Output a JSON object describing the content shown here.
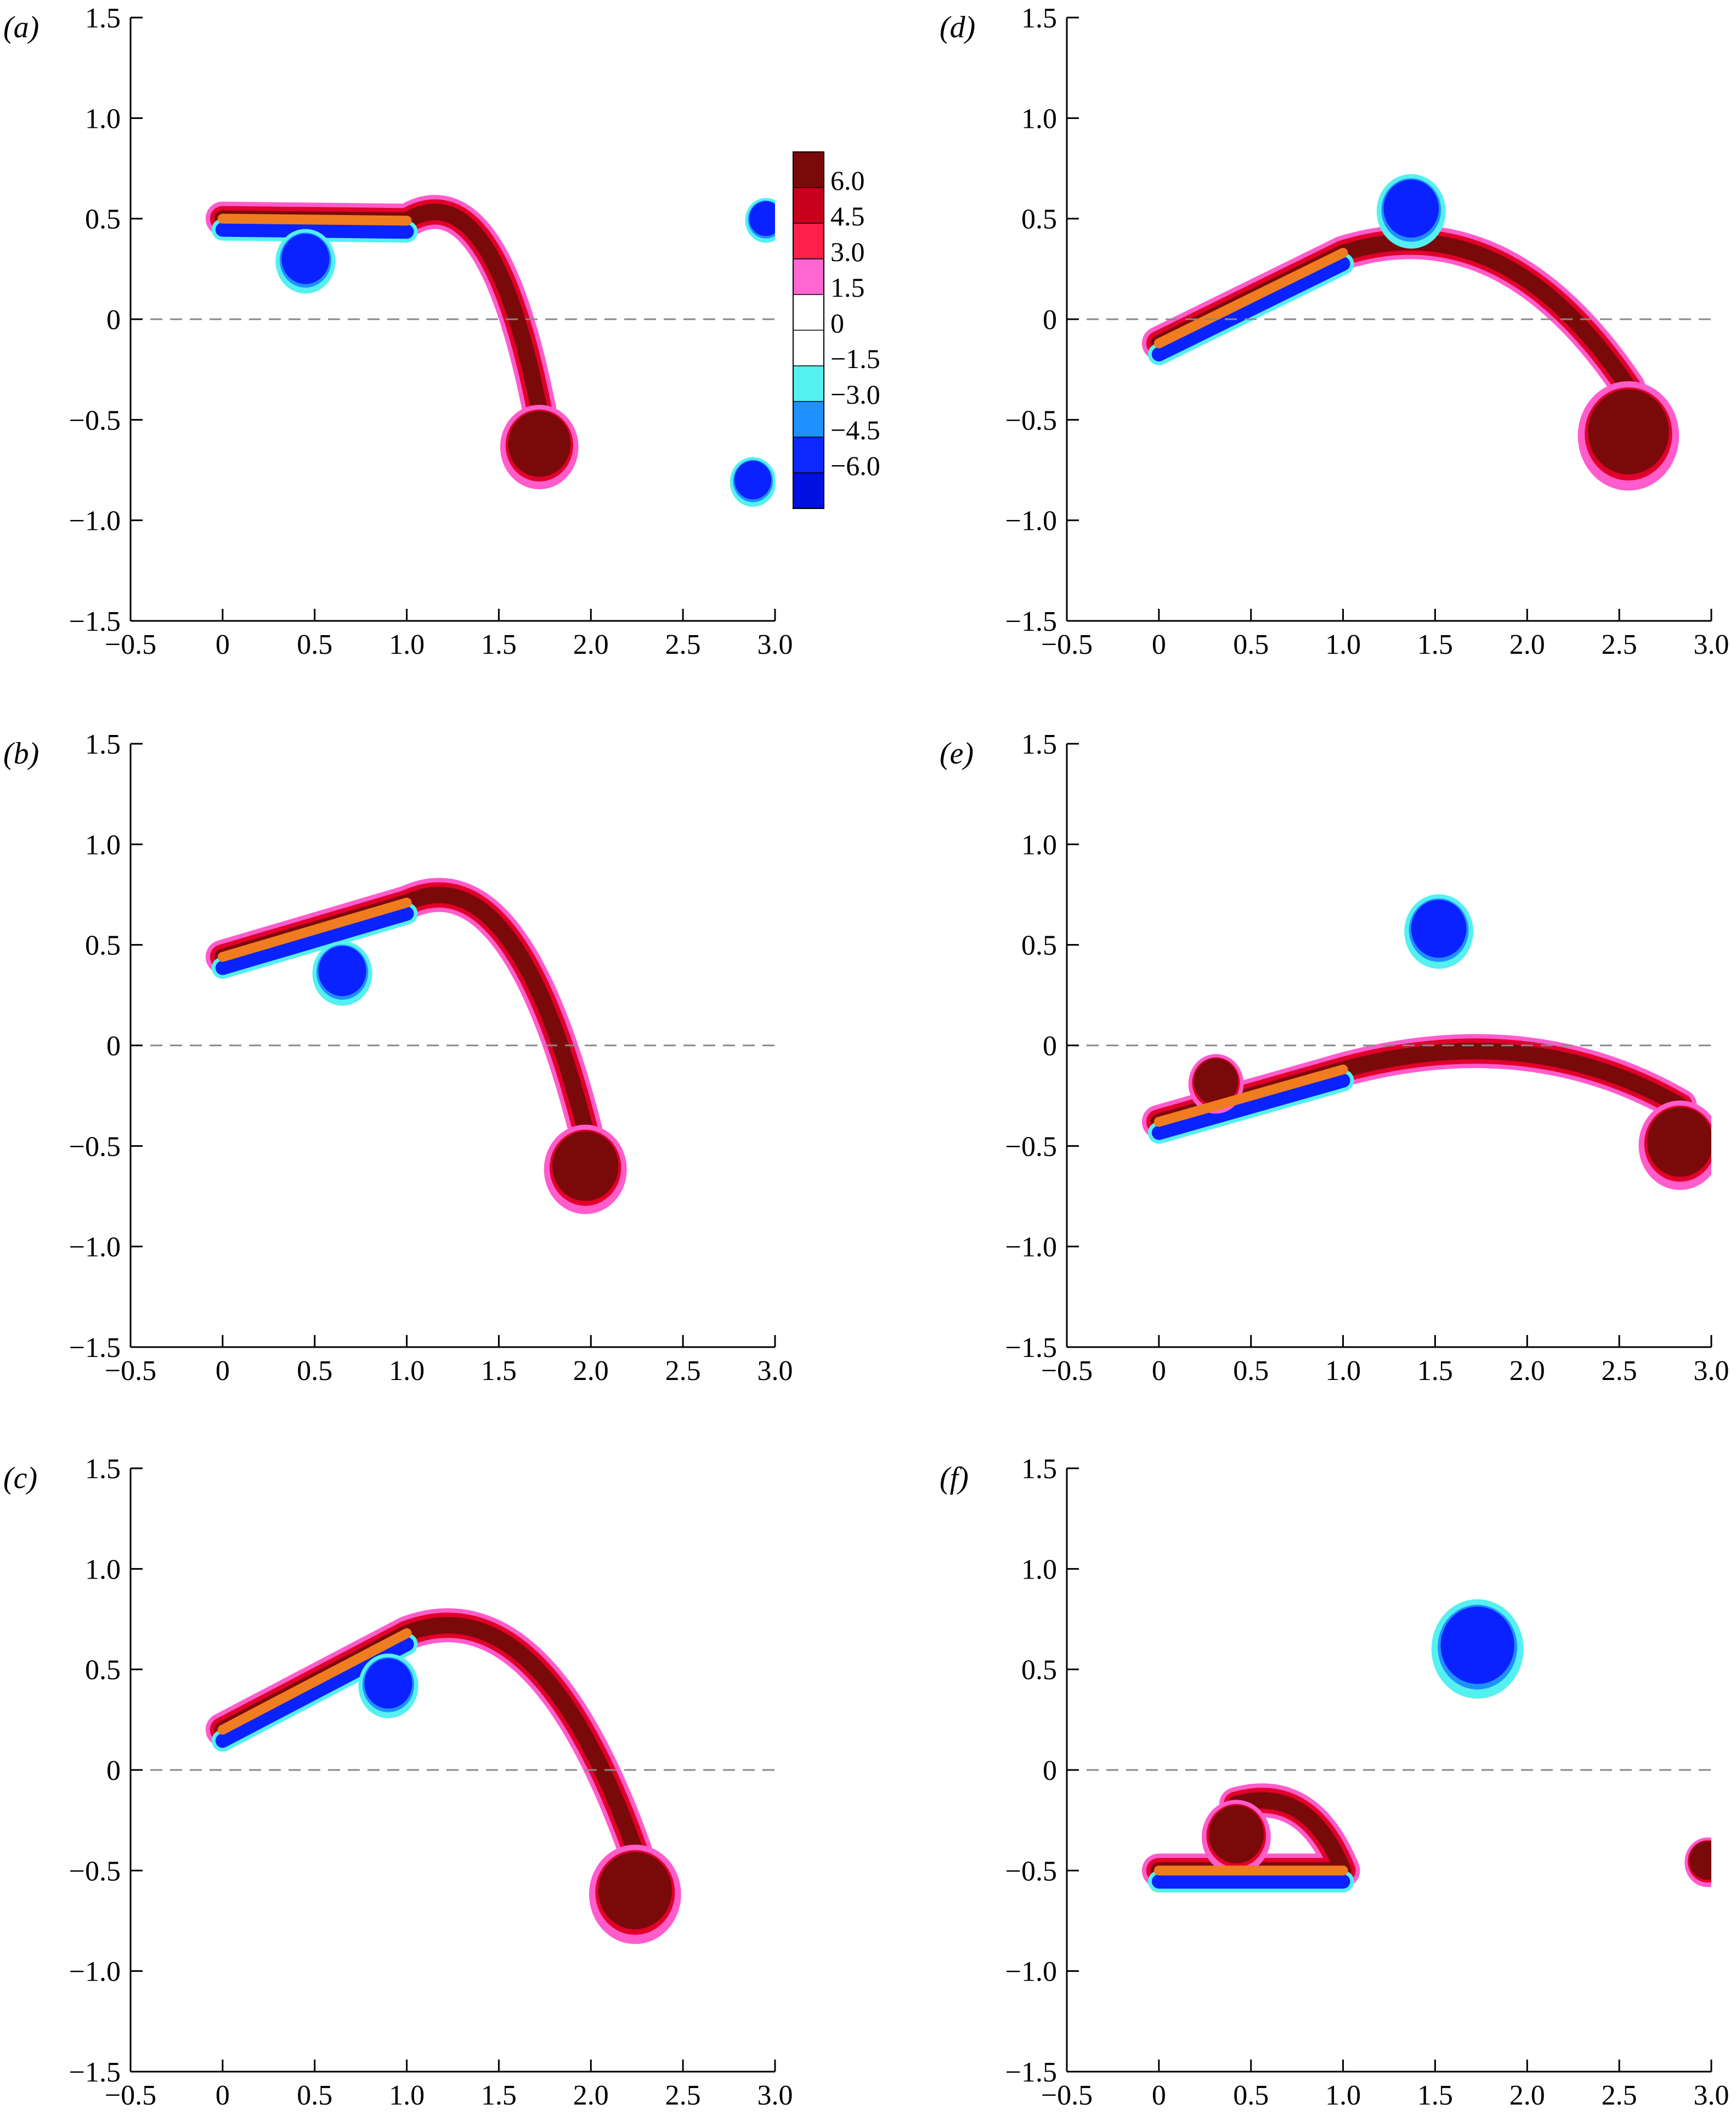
{
  "figure": {
    "colorbar": {
      "levels": [
        "6.0",
        "4.5",
        "3.0",
        "1.5",
        "0",
        "−1.5",
        "−3.0",
        "−4.5",
        "−6.0"
      ],
      "colors": [
        "#7a0a0a",
        "#c8001e",
        "#ff1f4b",
        "#ff66d1",
        "#ffffff",
        "#ffffff",
        "#55f0f0",
        "#1e90ff",
        "#0a28ff",
        "#0010e0"
      ]
    },
    "colors": {
      "positive_core": "#7a0a0a",
      "positive_mid": "#e0002a",
      "positive_edge": "#ff5ccc",
      "negative_core": "#0a22ff",
      "negative_mid": "#1e90ff",
      "negative_edge": "#55f0f0",
      "plate": "#f07c20",
      "centerline": "#888888"
    }
  },
  "chart_data": [
    {
      "panel": "(a)",
      "type": "contour",
      "xlim": [
        -0.5,
        3.0
      ],
      "ylim": [
        -1.5,
        1.5
      ],
      "x_ticks": [
        "−0.5",
        "0",
        "0.5",
        "1.0",
        "1.5",
        "2.0",
        "2.5",
        "3.0"
      ],
      "y_ticks": [
        "−1.5",
        "−1.0",
        "−0.5",
        "0",
        "0.5",
        "1.0",
        "1.5"
      ],
      "plate": [
        [
          0,
          0.5
        ],
        [
          1.0,
          0.49
        ]
      ],
      "vortices": [
        {
          "x": 0.45,
          "y": 0.3,
          "sign": -1,
          "r": 0.13
        },
        {
          "x": 1.72,
          "y": -0.62,
          "sign": 1,
          "r": 0.17
        },
        {
          "x": 2.88,
          "y": -0.8,
          "sign": -1,
          "r": 0.1
        },
        {
          "x": 2.95,
          "y": 0.5,
          "sign": -1,
          "r": 0.09
        }
      ]
    },
    {
      "panel": "(b)",
      "type": "contour",
      "xlim": [
        -0.5,
        3.0
      ],
      "ylim": [
        -1.5,
        1.5
      ],
      "x_ticks": [
        "−0.5",
        "0",
        "0.5",
        "1.0",
        "1.5",
        "2.0",
        "2.5",
        "3.0"
      ],
      "y_ticks": [
        "−1.5",
        "−1.0",
        "−0.5",
        "0",
        "0.5",
        "1.0",
        "1.5"
      ],
      "plate": [
        [
          0,
          0.44
        ],
        [
          1.0,
          0.71
        ]
      ],
      "vortices": [
        {
          "x": 0.65,
          "y": 0.37,
          "sign": -1,
          "r": 0.13
        },
        {
          "x": 1.97,
          "y": -0.6,
          "sign": 1,
          "r": 0.18
        }
      ]
    },
    {
      "panel": "(c)",
      "type": "contour",
      "xlim": [
        -0.5,
        3.0
      ],
      "ylim": [
        -1.5,
        1.5
      ],
      "x_ticks": [
        "−0.5",
        "0",
        "0.5",
        "1.0",
        "1.5",
        "2.0",
        "2.5",
        "3.0"
      ],
      "y_ticks": [
        "−1.5",
        "−1.0",
        "−0.5",
        "0",
        "0.5",
        "1.0",
        "1.5"
      ],
      "plate": [
        [
          0,
          0.2
        ],
        [
          1.0,
          0.68
        ]
      ],
      "vortices": [
        {
          "x": 0.9,
          "y": 0.43,
          "sign": -1,
          "r": 0.13
        },
        {
          "x": 2.24,
          "y": -0.6,
          "sign": 1,
          "r": 0.2
        }
      ]
    },
    {
      "panel": "(d)",
      "type": "contour",
      "xlim": [
        -0.5,
        3.0
      ],
      "ylim": [
        -1.5,
        1.5
      ],
      "x_ticks": [
        "−0.5",
        "0",
        "0.5",
        "1.0",
        "1.5",
        "2.0",
        "2.5",
        "3.0"
      ],
      "y_ticks": [
        "−1.5",
        "−1.0",
        "−0.5",
        "0",
        "0.5",
        "1.0",
        "1.5"
      ],
      "plate": [
        [
          0,
          -0.12
        ],
        [
          1.0,
          0.33
        ]
      ],
      "vortices": [
        {
          "x": 1.37,
          "y": 0.55,
          "sign": -1,
          "r": 0.15
        },
        {
          "x": 2.55,
          "y": -0.56,
          "sign": 1,
          "r": 0.22
        }
      ]
    },
    {
      "panel": "(e)",
      "type": "contour",
      "xlim": [
        -0.5,
        3.0
      ],
      "ylim": [
        -1.5,
        1.5
      ],
      "x_ticks": [
        "−0.5",
        "0",
        "0.5",
        "1.0",
        "1.5",
        "2.0",
        "2.5",
        "3.0"
      ],
      "y_ticks": [
        "−1.5",
        "−1.0",
        "−0.5",
        "0",
        "0.5",
        "1.0",
        "1.5"
      ],
      "plate": [
        [
          0,
          -0.38
        ],
        [
          1.0,
          -0.12
        ]
      ],
      "vortices": [
        {
          "x": 0.31,
          "y": -0.18,
          "sign": 1,
          "r": 0.12
        },
        {
          "x": 1.52,
          "y": 0.58,
          "sign": -1,
          "r": 0.15
        },
        {
          "x": 2.83,
          "y": -0.48,
          "sign": 1,
          "r": 0.18
        }
      ]
    },
    {
      "panel": "(f)",
      "type": "contour",
      "xlim": [
        -0.5,
        3.0
      ],
      "ylim": [
        -1.5,
        1.5
      ],
      "x_ticks": [
        "−0.5",
        "0",
        "0.5",
        "1.0",
        "1.5",
        "2.0",
        "2.5",
        "3.0"
      ],
      "y_ticks": [
        "−1.5",
        "−1.0",
        "−0.5",
        "0",
        "0.5",
        "1.0",
        "1.5"
      ],
      "plate": [
        [
          0,
          -0.5
        ],
        [
          1.0,
          -0.5
        ]
      ],
      "vortices": [
        {
          "x": 0.42,
          "y": -0.32,
          "sign": 1,
          "r": 0.15
        },
        {
          "x": 1.73,
          "y": 0.62,
          "sign": -1,
          "r": 0.2
        },
        {
          "x": 2.98,
          "y": -0.45,
          "sign": 1,
          "r": 0.1
        }
      ]
    }
  ]
}
